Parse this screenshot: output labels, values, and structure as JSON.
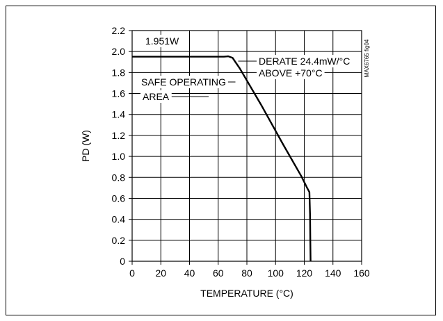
{
  "chart_data": {
    "type": "line",
    "figure_id": "MAX6765 fig04",
    "xlabel": "TEMPERATURE (°C)",
    "ylabel": "PD (W)",
    "xlim": [
      0,
      160
    ],
    "ylim": [
      0,
      2.2
    ],
    "x_ticks": [
      0,
      20,
      40,
      60,
      80,
      100,
      120,
      140,
      160
    ],
    "y_ticks": [
      0,
      0.2,
      0.4,
      0.6,
      0.8,
      1.0,
      1.2,
      1.4,
      1.6,
      1.8,
      2.0,
      2.2
    ],
    "y_tick_labels": [
      "0",
      "0.2",
      "0.4",
      "0.6",
      "0.8",
      "1.0",
      "1.2",
      "1.4",
      "1.6",
      "1.8",
      "2.0",
      "2.2"
    ],
    "grid": true,
    "series": [
      {
        "x": [
          0,
          64,
          67,
          70,
          72,
          75,
          90,
          105,
          118,
          122,
          123.6,
          124,
          124.2,
          124.4
        ],
        "y": [
          1.951,
          1.951,
          1.955,
          1.94,
          1.9,
          1.84,
          1.49,
          1.12,
          0.81,
          0.7,
          0.66,
          0.45,
          0.2,
          0
        ]
      }
    ],
    "annotations": [
      {
        "text": "1.951W"
      },
      {
        "text": "DERATE 24.4mW/°C"
      },
      {
        "text": "ABOVE +70°C"
      },
      {
        "text": "SAFE OPERATING"
      },
      {
        "text": "AREA"
      }
    ]
  }
}
